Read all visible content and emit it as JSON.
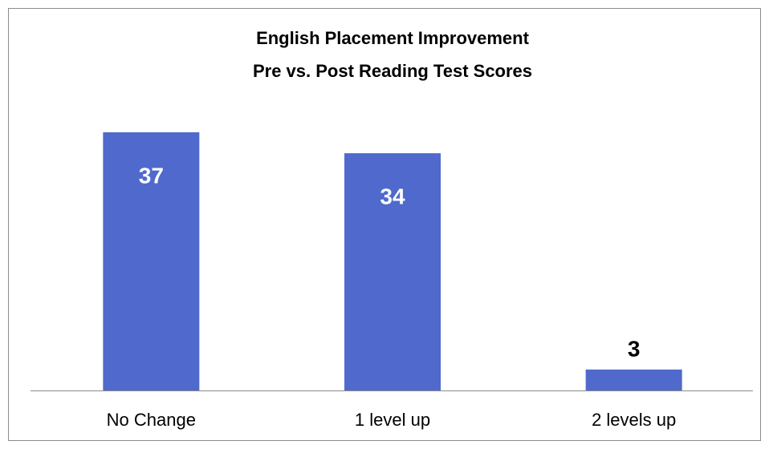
{
  "chart_data": {
    "type": "bar",
    "title": "English Placement Improvement",
    "subtitle": "Pre vs. Post Reading Test Scores",
    "categories": [
      "No Change",
      "1 level up",
      "2 levels up"
    ],
    "values": [
      37,
      34,
      3
    ],
    "color": "#4f6acc"
  }
}
